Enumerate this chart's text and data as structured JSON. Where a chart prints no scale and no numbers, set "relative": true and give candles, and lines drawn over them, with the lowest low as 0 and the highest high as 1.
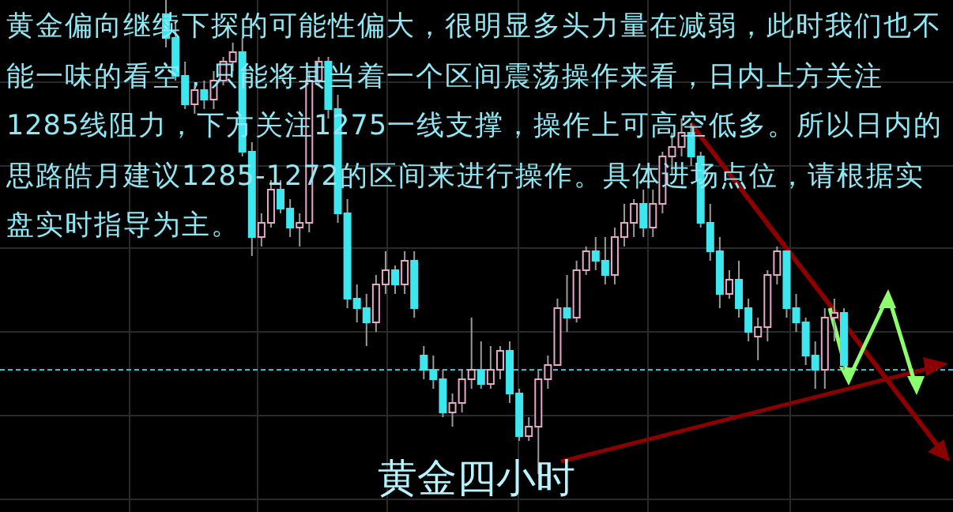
{
  "chart_data": {
    "type": "candlestick",
    "relative": true,
    "grid": true,
    "title": "黄金四小时",
    "annotations": [
      "黄金偏向继续下探的可能性偏大，很明显多头力量在减弱，此时我们也不能一味的看空，只能将其当着一个区间震荡操作来看，日内上方关注1285线阻力，下方关注1275一线支撑，操作上可高空低多。所以日内的思路皓月建议1285-1272的区间来进行操作。具体进场点位，请根据实盘实时指导为主。"
    ],
    "ref_lines": [
      {
        "axis": "y",
        "value": 0.22,
        "color": "#2cc4d8",
        "line_style": "dashed"
      }
    ],
    "categories": [
      null,
      null,
      null,
      null,
      null,
      null,
      null,
      null,
      null,
      null,
      null,
      null,
      null,
      null,
      null,
      null,
      null,
      null,
      null,
      null,
      null,
      null,
      null,
      null,
      null,
      null,
      null,
      null,
      null,
      null,
      null,
      null,
      null,
      null,
      null,
      null,
      null,
      null,
      null,
      null,
      null,
      null,
      null,
      null,
      null,
      null,
      null,
      null,
      null,
      null,
      null,
      null,
      null,
      null,
      null,
      null,
      null,
      null,
      null,
      null,
      null,
      null,
      null,
      null,
      null,
      null,
      null,
      null,
      null,
      null,
      null,
      null
    ],
    "ohlc": [
      [
        0.97,
        1,
        0.9,
        0.92
      ],
      [
        0.92,
        0.95,
        0.83,
        0.84
      ],
      [
        0.84,
        0.87,
        0.77,
        0.78
      ],
      [
        0.78,
        0.82,
        0.76,
        0.81
      ],
      [
        0.81,
        0.83,
        0.77,
        0.79
      ],
      [
        0.79,
        0.85,
        0.77,
        0.83
      ],
      [
        0.83,
        0.88,
        0.82,
        0.87
      ],
      [
        0.87,
        0.91,
        0.85,
        0.89
      ],
      [
        0.89,
        0.92,
        0.67,
        0.68
      ],
      [
        0.68,
        0.7,
        0.46,
        0.5
      ],
      [
        0.5,
        0.55,
        0.48,
        0.53
      ],
      [
        0.53,
        0.62,
        0.52,
        0.6
      ],
      [
        0.6,
        0.62,
        0.55,
        0.56
      ],
      [
        0.56,
        0.58,
        0.5,
        0.52
      ],
      [
        0.52,
        0.55,
        0.48,
        0.53
      ],
      [
        0.53,
        0.85,
        0.51,
        0.83
      ],
      [
        0.83,
        0.88,
        0.82,
        0.87
      ],
      [
        0.87,
        0.88,
        0.75,
        0.77
      ],
      [
        0.77,
        0.8,
        0.53,
        0.55
      ],
      [
        0.55,
        0.58,
        0.35,
        0.37
      ],
      [
        0.37,
        0.4,
        0.32,
        0.35
      ],
      [
        0.35,
        0.38,
        0.27,
        0.32
      ],
      [
        0.32,
        0.42,
        0.3,
        0.4
      ],
      [
        0.4,
        0.47,
        0.38,
        0.43
      ],
      [
        0.43,
        0.44,
        0.38,
        0.4
      ],
      [
        0.4,
        0.47,
        0.38,
        0.45
      ],
      [
        0.45,
        0.47,
        0.33,
        0.35
      ],
      [
        0.25,
        0.27,
        0.2,
        0.22
      ],
      [
        0.22,
        0.25,
        0.18,
        0.2
      ],
      [
        0.2,
        0.22,
        0.12,
        0.13
      ],
      [
        0.13,
        0.17,
        0.1,
        0.15
      ],
      [
        0.15,
        0.22,
        0.13,
        0.2
      ],
      [
        0.2,
        0.33,
        0.18,
        0.22
      ],
      [
        0.22,
        0.28,
        0.18,
        0.19
      ],
      [
        0.19,
        0.27,
        0.18,
        0.22
      ],
      [
        0.22,
        0.27,
        0.2,
        0.26
      ],
      [
        0.26,
        0.28,
        0.15,
        0.17
      ],
      [
        0.17,
        0.18,
        0.07,
        0.08
      ],
      [
        0.08,
        0.12,
        0.07,
        0.1
      ],
      [
        0.1,
        0.22,
        0,
        0.2
      ],
      [
        0.2,
        0.25,
        0.18,
        0.23
      ],
      [
        0.23,
        0.37,
        0.23,
        0.35
      ],
      [
        0.35,
        0.42,
        0.3,
        0.33
      ],
      [
        0.33,
        0.45,
        0.32,
        0.43
      ],
      [
        0.43,
        0.48,
        0.42,
        0.47
      ],
      [
        0.47,
        0.5,
        0.43,
        0.45
      ],
      [
        0.45,
        0.5,
        0.4,
        0.42
      ],
      [
        0.42,
        0.52,
        0.4,
        0.5
      ],
      [
        0.5,
        0.57,
        0.48,
        0.53
      ],
      [
        0.53,
        0.58,
        0.5,
        0.57
      ],
      [
        0.57,
        0.6,
        0.5,
        0.52
      ],
      [
        0.52,
        0.6,
        0.5,
        0.57
      ],
      [
        0.57,
        0.68,
        0.55,
        0.67
      ],
      [
        0.67,
        0.72,
        0.63,
        0.69
      ],
      [
        0.69,
        0.75,
        0.67,
        0.72
      ],
      [
        0.72,
        0.74,
        0.65,
        0.67
      ],
      [
        0.67,
        0.68,
        0.52,
        0.53
      ],
      [
        0.53,
        0.57,
        0.45,
        0.47
      ],
      [
        0.47,
        0.5,
        0.35,
        0.38
      ],
      [
        0.38,
        0.43,
        0.37,
        0.41
      ],
      [
        0.41,
        0.45,
        0.33,
        0.35
      ],
      [
        0.35,
        0.37,
        0.28,
        0.3
      ],
      [
        0.29,
        0.33,
        0.24,
        0.31
      ],
      [
        0.31,
        0.43,
        0.28,
        0.42
      ],
      [
        0.42,
        0.48,
        0.4,
        0.47
      ],
      [
        0.47,
        0.47,
        0.33,
        0.35
      ],
      [
        0.35,
        0.38,
        0.3,
        0.32
      ],
      [
        0.32,
        0.33,
        0.23,
        0.25
      ],
      [
        0.25,
        0.28,
        0.18,
        0.22
      ],
      [
        0.22,
        0.35,
        0.18,
        0.33
      ],
      [
        0.33,
        0.37,
        0.28,
        0.34
      ],
      [
        0.34,
        0.35,
        0.22,
        0.23
      ]
    ]
  }
}
